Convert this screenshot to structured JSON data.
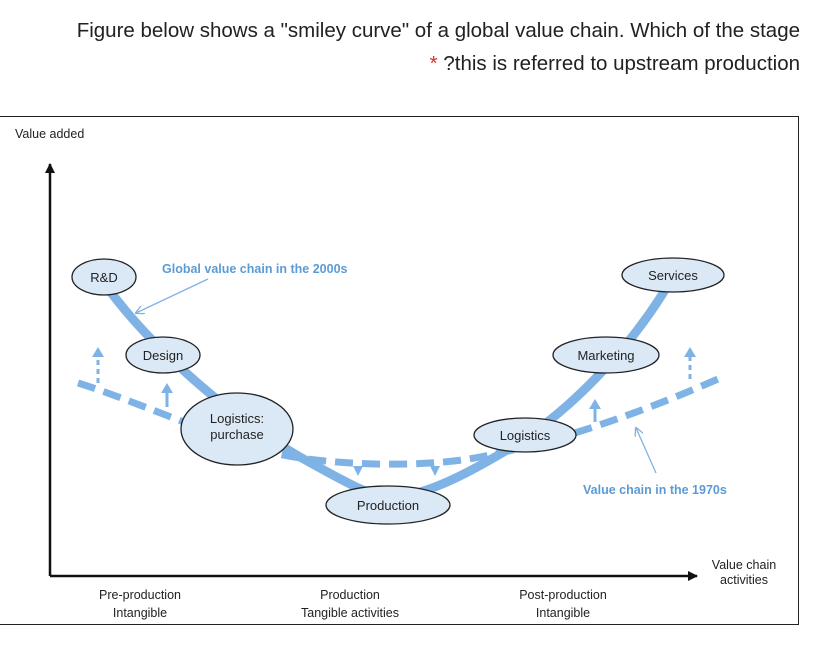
{
  "question": {
    "line1": "Figure below shows a \"smiley curve\" of a global value chain. Which of the stage",
    "required_marker": "*",
    "line2": "?this is referred to upstream production"
  },
  "diagram": {
    "y_axis_label": "Value added",
    "x_axis_label_line1": "Value chain",
    "x_axis_label_line2": "activities",
    "nodes": {
      "rd": "R&D",
      "design": "Design",
      "logistics_purchase_1": "Logistics:",
      "logistics_purchase_2": "purchase",
      "production": "Production",
      "logistics": "Logistics",
      "marketing": "Marketing",
      "services": "Services"
    },
    "annotations": {
      "gvc_2000s": "Global value chain in the 2000s",
      "vc_1970s": "Value chain in the 1970s"
    },
    "phases": {
      "pre_production_1": "Pre-production",
      "pre_production_2": "Intangible",
      "production_1": "Production",
      "production_2": "Tangible activities",
      "post_production_1": "Post-production",
      "post_production_2": "Intangible"
    },
    "colors": {
      "curve": "#7fb3e6",
      "node_fill": "#dbe9f6",
      "annotation_text": "#5b9bd5",
      "axis": "#111111"
    }
  }
}
